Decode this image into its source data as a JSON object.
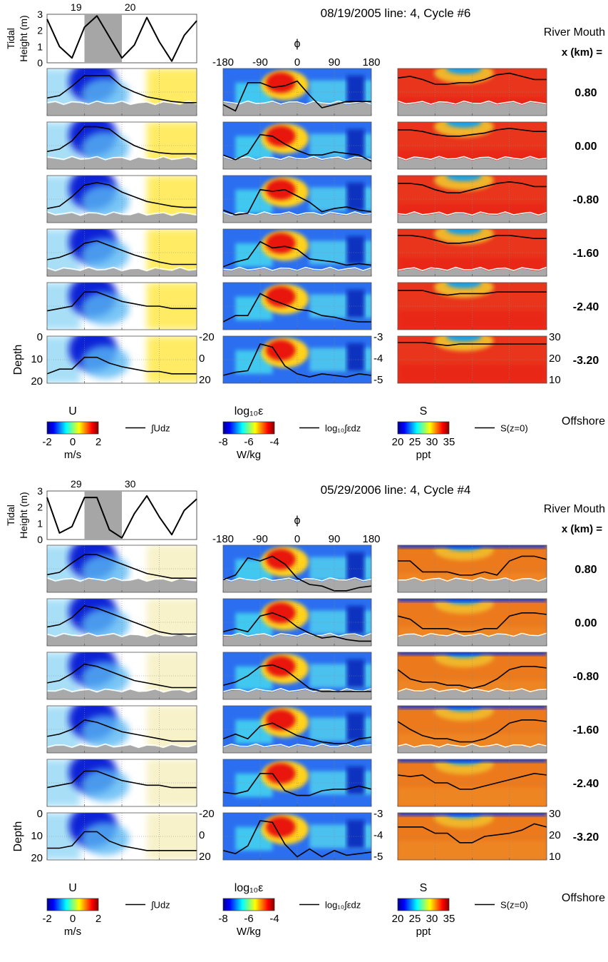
{
  "figure": {
    "blocks": [
      {
        "title": "08/19/2005 line: 4, Cycle #6",
        "tide": {
          "ylabel1": "Tidal",
          "ylabel2": "Height (m)",
          "yticks": [
            "3",
            "2",
            "1",
            "0"
          ],
          "day_labels": [
            "19",
            "20"
          ],
          "ylim": [
            0,
            3
          ],
          "shaded_phase_deg": [
            -90,
            0
          ]
        },
        "phase_axis": {
          "symbol": "ϕ",
          "ticks": [
            "-180",
            "-90",
            "0",
            "90",
            "180"
          ]
        },
        "river_mouth": "River Mouth",
        "x_header": "x (km) =",
        "rows": [
          "0.80",
          "0.00",
          "-0.80",
          "-1.60",
          "-2.40",
          "-3.20"
        ],
        "depth_axis": {
          "label": "Depth",
          "ticks": [
            "0",
            "10",
            "20"
          ]
        },
        "right_ticks": {
          "u": [
            "-20",
            "0",
            "20"
          ],
          "eps": [
            "-3",
            "-4",
            "-5"
          ],
          "s": [
            "30",
            "20",
            "10"
          ]
        },
        "offshore": "Offshore",
        "colorbars": [
          {
            "title": "U",
            "ticks": [
              "-2",
              "0",
              "2"
            ],
            "unit": "m/s",
            "legend": "∫Udz",
            "colormap": "jet"
          },
          {
            "title": "log₁₀ε",
            "ticks": [
              "-8",
              "-6",
              "-4"
            ],
            "unit": "W/kg",
            "legend": "log₁₀∫εdz",
            "colormap": "jet"
          },
          {
            "title": "S",
            "ticks": [
              "20",
              "25",
              "30",
              "35"
            ],
            "unit": "ppt",
            "legend": "S(z=0)",
            "colormap": "jet"
          }
        ]
      },
      {
        "title": "05/29/2006 line: 4, Cycle #4",
        "tide": {
          "ylabel1": "Tidal",
          "ylabel2": "Height (m)",
          "yticks": [
            "3",
            "2",
            "1",
            "0"
          ],
          "day_labels": [
            "29",
            "30"
          ],
          "ylim": [
            0,
            3
          ],
          "shaded_phase_deg": [
            -90,
            0
          ]
        },
        "phase_axis": {
          "symbol": "ϕ",
          "ticks": [
            "-180",
            "-90",
            "0",
            "90",
            "180"
          ]
        },
        "river_mouth": "River Mouth",
        "x_header": "x (km) =",
        "rows": [
          "0.80",
          "0.00",
          "-0.80",
          "-1.60",
          "-2.40",
          "-3.20"
        ],
        "depth_axis": {
          "label": "Depth",
          "ticks": [
            "0",
            "10",
            "20"
          ]
        },
        "right_ticks": {
          "u": [
            "-20",
            "0",
            "20"
          ],
          "eps": [
            "-3",
            "-4",
            "-5"
          ],
          "s": [
            "30",
            "20",
            "10"
          ]
        },
        "offshore": "Offshore",
        "colorbars": [
          {
            "title": "U",
            "ticks": [
              "-2",
              "0",
              "2"
            ],
            "unit": "m/s",
            "legend": "∫Udz",
            "colormap": "jet"
          },
          {
            "title": "log₁₀ε",
            "ticks": [
              "-8",
              "-6",
              "-4"
            ],
            "unit": "W/kg",
            "legend": "log₁₀∫εdz",
            "colormap": "jet"
          },
          {
            "title": "S",
            "ticks": [
              "20",
              "25",
              "30",
              "35"
            ],
            "unit": "ppt",
            "legend": "S(z=0)",
            "colormap": "jet"
          }
        ]
      }
    ]
  },
  "chart_data": {
    "type": "heatmap",
    "x": [
      -180,
      -150,
      -120,
      -90,
      -60,
      -30,
      0,
      30,
      60,
      90,
      120,
      150,
      180
    ],
    "xlabel": "ϕ",
    "panels": [
      {
        "title": "08/19/2005 line: 4, Cycle #6",
        "tide_height_m": [
          2.7,
          1.0,
          0.3,
          2.2,
          2.9,
          1.6,
          0.3,
          1.1,
          2.8,
          1.3,
          0.1,
          1.7,
          2.6
        ],
        "u_integral": {
          "0.80": [
            -5,
            -3,
            5,
            14,
            14,
            14,
            5,
            0,
            -4,
            -6,
            -8,
            -9,
            -9
          ],
          "0.00": [
            -5,
            -3,
            4,
            16,
            16,
            14,
            6,
            0,
            -4,
            -6,
            -7,
            -7,
            -7
          ],
          "-0.80": [
            -8,
            -6,
            2,
            12,
            14,
            12,
            6,
            2,
            -2,
            -4,
            -6,
            -7,
            -7
          ],
          "-1.60": [
            -6,
            -4,
            0,
            8,
            10,
            6,
            2,
            -2,
            -5,
            -8,
            -10,
            -10,
            -10
          ],
          "-2.40": [
            -4,
            -2,
            0,
            12,
            12,
            8,
            4,
            2,
            0,
            0,
            -2,
            -2,
            -2
          ],
          "-3.20": [
            -12,
            -8,
            -8,
            2,
            2,
            -3,
            -6,
            -8,
            -10,
            -10,
            -12,
            -12,
            -12
          ]
        },
        "eps_integral": {
          "0.80": [
            -4.8,
            -5.2,
            -3.4,
            -3.4,
            -3.7,
            -3.6,
            -3.3,
            -4.2,
            -5.0,
            -4.8,
            -4.6,
            -4.6,
            -4.6
          ],
          "0.00": [
            -4.6,
            -4.9,
            -4.5,
            -3.3,
            -3.4,
            -3.9,
            -4.3,
            -4.6,
            -4.6,
            -4.4,
            -4.5,
            -4.6,
            -5.0
          ],
          "-0.80": [
            -4.7,
            -5.0,
            -4.9,
            -3.4,
            -3.5,
            -3.4,
            -3.8,
            -4.2,
            -4.8,
            -4.6,
            -4.5,
            -4.7,
            -4.8
          ],
          "-1.60": [
            -4.9,
            -4.6,
            -4.4,
            -3.3,
            -3.7,
            -3.6,
            -3.8,
            -4.4,
            -4.5,
            -4.6,
            -4.8,
            -4.7,
            -4.8
          ],
          "-2.40": [
            -5.0,
            -4.6,
            -4.6,
            -3.2,
            -3.6,
            -3.9,
            -4.2,
            -4.3,
            -4.6,
            -4.7,
            -4.9,
            -5.0,
            -5.0
          ],
          "-3.20": [
            -5.0,
            -4.8,
            -4.7,
            -3.0,
            -3.2,
            -4.4,
            -4.9,
            -5.1,
            -4.9,
            -5.0,
            -5.1,
            -4.9,
            -5.0
          ]
        },
        "s_surface": {
          "0.80": [
            29,
            30,
            28,
            25,
            25,
            26,
            26,
            28,
            31,
            32,
            30,
            28,
            28
          ],
          "0.00": [
            30,
            30,
            29,
            27,
            26,
            26,
            27,
            28,
            30,
            31,
            30,
            29,
            29
          ],
          "-0.80": [
            30,
            30,
            29,
            26,
            24,
            24,
            26,
            28,
            30,
            31,
            30,
            28,
            28
          ],
          "-1.60": [
            31,
            31,
            30,
            28,
            26,
            26,
            27,
            29,
            31,
            31,
            30,
            29,
            29
          ],
          "-2.40": [
            30,
            30,
            30,
            28,
            27,
            28,
            28,
            28,
            29,
            29,
            29,
            29,
            29
          ],
          "-3.20": [
            31,
            31,
            31,
            30,
            29,
            30,
            30,
            30,
            30,
            30,
            30,
            30,
            30
          ]
        }
      },
      {
        "title": "05/29/2006 line: 4, Cycle #4",
        "tide_height_m": [
          2.6,
          0.4,
          0.8,
          2.6,
          2.6,
          0.6,
          0.1,
          1.6,
          2.7,
          1.4,
          0.3,
          1.8,
          2.5
        ],
        "u_integral": {
          "0.80": [
            -5,
            -3,
            5,
            12,
            12,
            8,
            4,
            0,
            -4,
            -6,
            -8,
            -8,
            -8
          ],
          "0.00": [
            -4,
            -2,
            4,
            14,
            12,
            8,
            4,
            0,
            -4,
            -8,
            -10,
            -10,
            -10
          ],
          "-0.80": [
            -6,
            -4,
            2,
            10,
            8,
            4,
            0,
            -4,
            -6,
            -8,
            -10,
            -10,
            -10
          ],
          "-1.60": [
            -6,
            -4,
            0,
            8,
            6,
            2,
            -2,
            -4,
            -6,
            -8,
            -10,
            -10,
            -10
          ],
          "-2.40": [
            -4,
            -2,
            0,
            10,
            10,
            6,
            2,
            0,
            -2,
            -2,
            -4,
            -4,
            -4
          ],
          "-3.20": [
            -10,
            -10,
            -8,
            4,
            4,
            -4,
            -8,
            -10,
            -12,
            -12,
            -12,
            -12,
            -12
          ]
        },
        "eps_integral": {
          "0.80": [
            -4.7,
            -4.4,
            -3.3,
            -3.5,
            -3.2,
            -3.7,
            -4.6,
            -5.0,
            -5.1,
            -5.4,
            -5.4,
            -5.2,
            -5.1
          ],
          "0.00": [
            -4.6,
            -4.4,
            -4.6,
            -3.6,
            -3.4,
            -3.7,
            -4.3,
            -4.7,
            -5.0,
            -4.9,
            -5.1,
            -5.2,
            -5.2
          ],
          "-0.80": [
            -4.6,
            -4.4,
            -4.0,
            -3.4,
            -3.3,
            -3.6,
            -4.2,
            -4.8,
            -5.0,
            -5.0,
            -5.0,
            -5.0,
            -5.0
          ],
          "-1.60": [
            -4.6,
            -4.3,
            -4.6,
            -3.8,
            -3.6,
            -4.0,
            -4.4,
            -4.6,
            -4.8,
            -4.9,
            -4.9,
            -4.6,
            -4.5
          ],
          "-2.40": [
            -4.6,
            -4.7,
            -4.5,
            -3.4,
            -3.4,
            -4.5,
            -4.8,
            -4.8,
            -4.5,
            -4.4,
            -4.4,
            -4.2,
            -4.4
          ],
          "-3.20": [
            -4.9,
            -5.1,
            -4.6,
            -3.0,
            -3.1,
            -4.5,
            -5.3,
            -4.8,
            -5.3,
            -4.9,
            -5.2,
            -5.1,
            -5.0
          ]
        },
        "s_surface": {
          "0.80": [
            25,
            25,
            18,
            18,
            18,
            16,
            16,
            18,
            16,
            25,
            28,
            28,
            26
          ],
          "0.00": [
            24,
            22,
            16,
            16,
            16,
            14,
            14,
            16,
            16,
            24,
            26,
            26,
            25
          ],
          "-0.80": [
            24,
            18,
            16,
            16,
            14,
            14,
            12,
            14,
            18,
            24,
            26,
            26,
            25
          ],
          "-1.60": [
            25,
            20,
            16,
            14,
            14,
            12,
            12,
            14,
            18,
            24,
            26,
            26,
            25
          ],
          "-2.40": [
            25,
            24,
            25,
            20,
            20,
            16,
            16,
            18,
            20,
            22,
            24,
            26,
            25
          ],
          "-3.20": [
            26,
            26,
            26,
            22,
            22,
            16,
            16,
            20,
            21,
            22,
            24,
            28,
            26
          ]
        }
      }
    ]
  }
}
